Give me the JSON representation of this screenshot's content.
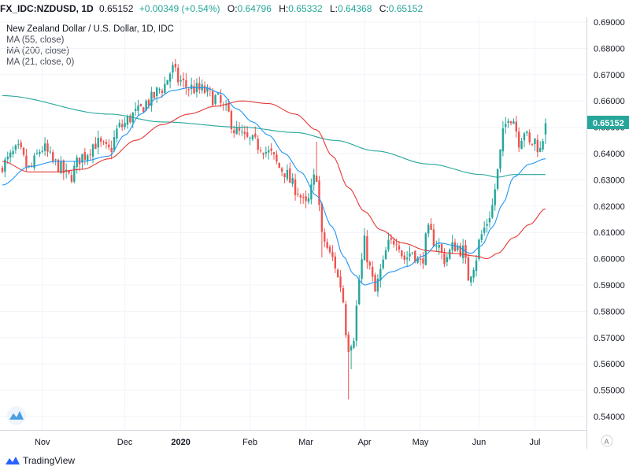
{
  "header": {
    "symbol": "FX_IDC:NZDUSD, 1D",
    "last": "0.65152",
    "change": "+0.00349 (+0.54%)",
    "o_label": "O:",
    "o": "0.64796",
    "h_label": "H:",
    "h": "0.65332",
    "l_label": "L:",
    "l": "0.64368",
    "c_label": "C:",
    "c": "0.65152"
  },
  "legend": {
    "title": "New Zealand Dollar / U.S. Dollar, 1D, IDC",
    "ma55": "MA (55, close)",
    "ma200": "MA (200, close)",
    "ma21": "MA (21, close, 0)"
  },
  "branding": "TradingView",
  "scale_button": "A",
  "price_badge": "0.65152",
  "colors": {
    "up": "#26a69a",
    "down": "#ef5350",
    "ma21": "#2196f3",
    "ma55": "#e53935",
    "ma200": "#26a69a",
    "badge": "#26a69a",
    "grid": "#f0f3fa"
  },
  "chart_data": {
    "type": "candlestick",
    "symbol": "FX_IDC:NZDUSD",
    "interval": "1D",
    "yaxis_ticks": [
      "0.69000",
      "0.68000",
      "0.67000",
      "0.66000",
      "0.65000",
      "0.64000",
      "0.63000",
      "0.62000",
      "0.61000",
      "0.60000",
      "0.59000",
      "0.58000",
      "0.57000",
      "0.56000",
      "0.55000",
      "0.54000"
    ],
    "ylim": [
      0.5355,
      0.6935
    ],
    "xaxis_ticks": [
      {
        "label": "Nov",
        "bold": false
      },
      {
        "label": "Dec",
        "bold": false
      },
      {
        "label": "2020",
        "bold": true
      },
      {
        "label": "Feb",
        "bold": false
      },
      {
        "label": "Mar",
        "bold": false
      },
      {
        "label": "Apr",
        "bold": false
      },
      {
        "label": "May",
        "bold": false
      },
      {
        "label": "Jun",
        "bold": false
      },
      {
        "label": "Jul",
        "bold": false
      }
    ],
    "close_anchors": [
      [
        0,
        0.636
      ],
      [
        6,
        0.641
      ],
      [
        10,
        0.634
      ],
      [
        15,
        0.642
      ],
      [
        20,
        0.636
      ],
      [
        25,
        0.631
      ],
      [
        30,
        0.639
      ],
      [
        35,
        0.644
      ],
      [
        40,
        0.641
      ],
      [
        44,
        0.65
      ],
      [
        50,
        0.655
      ],
      [
        55,
        0.66
      ],
      [
        60,
        0.665
      ],
      [
        64,
        0.672
      ],
      [
        66,
        0.668
      ],
      [
        70,
        0.665
      ],
      [
        75,
        0.664
      ],
      [
        80,
        0.661
      ],
      [
        84,
        0.656
      ],
      [
        88,
        0.648
      ],
      [
        92,
        0.645
      ],
      [
        97,
        0.643
      ],
      [
        100,
        0.64
      ],
      [
        105,
        0.634
      ],
      [
        110,
        0.627
      ],
      [
        114,
        0.62
      ],
      [
        118,
        0.632
      ],
      [
        120,
        0.608
      ],
      [
        124,
        0.6
      ],
      [
        127,
        0.59
      ],
      [
        130,
        0.567
      ],
      [
        132,
        0.571
      ],
      [
        134,
        0.592
      ],
      [
        136,
        0.606
      ],
      [
        138,
        0.596
      ],
      [
        140,
        0.587
      ],
      [
        142,
        0.595
      ],
      [
        145,
        0.605
      ],
      [
        148,
        0.608
      ],
      [
        151,
        0.6
      ],
      [
        154,
        0.603
      ],
      [
        157,
        0.598
      ],
      [
        160,
        0.61
      ],
      [
        163,
        0.606
      ],
      [
        166,
        0.6
      ],
      [
        170,
        0.605
      ],
      [
        173,
        0.603
      ],
      [
        175,
        0.593
      ],
      [
        177,
        0.598
      ],
      [
        180,
        0.609
      ],
      [
        182,
        0.614
      ],
      [
        184,
        0.62
      ],
      [
        186,
        0.633
      ],
      [
        188,
        0.647
      ],
      [
        190,
        0.655
      ],
      [
        192,
        0.653
      ],
      [
        194,
        0.645
      ],
      [
        196,
        0.649
      ],
      [
        198,
        0.643
      ],
      [
        200,
        0.645
      ],
      [
        202,
        0.641
      ],
      [
        204,
        0.6515
      ]
    ],
    "ma21_anchors": [
      [
        0,
        0.628
      ],
      [
        10,
        0.635
      ],
      [
        20,
        0.637
      ],
      [
        30,
        0.637
      ],
      [
        40,
        0.639
      ],
      [
        46,
        0.647
      ],
      [
        52,
        0.655
      ],
      [
        58,
        0.661
      ],
      [
        64,
        0.664
      ],
      [
        70,
        0.665
      ],
      [
        76,
        0.665
      ],
      [
        82,
        0.663
      ],
      [
        88,
        0.657
      ],
      [
        94,
        0.652
      ],
      [
        100,
        0.647
      ],
      [
        106,
        0.64
      ],
      [
        112,
        0.633
      ],
      [
        118,
        0.624
      ],
      [
        124,
        0.612
      ],
      [
        128,
        0.601
      ],
      [
        132,
        0.594
      ],
      [
        136,
        0.59
      ],
      [
        140,
        0.591
      ],
      [
        146,
        0.595
      ],
      [
        152,
        0.597
      ],
      [
        158,
        0.601
      ],
      [
        164,
        0.606
      ],
      [
        170,
        0.605
      ],
      [
        176,
        0.602
      ],
      [
        180,
        0.605
      ],
      [
        184,
        0.612
      ],
      [
        188,
        0.621
      ],
      [
        192,
        0.631
      ],
      [
        198,
        0.636
      ],
      [
        204,
        0.638
      ]
    ],
    "ma55_anchors": [
      [
        0,
        0.637
      ],
      [
        10,
        0.633
      ],
      [
        20,
        0.633
      ],
      [
        30,
        0.634
      ],
      [
        40,
        0.638
      ],
      [
        50,
        0.645
      ],
      [
        60,
        0.651
      ],
      [
        70,
        0.655
      ],
      [
        80,
        0.658
      ],
      [
        90,
        0.66
      ],
      [
        100,
        0.659
      ],
      [
        110,
        0.655
      ],
      [
        118,
        0.649
      ],
      [
        124,
        0.639
      ],
      [
        130,
        0.627
      ],
      [
        136,
        0.618
      ],
      [
        142,
        0.611
      ],
      [
        150,
        0.606
      ],
      [
        160,
        0.603
      ],
      [
        170,
        0.602
      ],
      [
        178,
        0.601
      ],
      [
        182,
        0.6
      ],
      [
        186,
        0.602
      ],
      [
        192,
        0.608
      ],
      [
        198,
        0.613
      ],
      [
        204,
        0.619
      ]
    ],
    "ma200_anchors": [
      [
        0,
        0.662
      ],
      [
        40,
        0.655
      ],
      [
        60,
        0.652
      ],
      [
        90,
        0.65
      ],
      [
        110,
        0.648
      ],
      [
        125,
        0.645
      ],
      [
        140,
        0.641
      ],
      [
        160,
        0.636
      ],
      [
        180,
        0.632
      ],
      [
        186,
        0.631
      ],
      [
        192,
        0.632
      ],
      [
        204,
        0.632
      ]
    ]
  }
}
